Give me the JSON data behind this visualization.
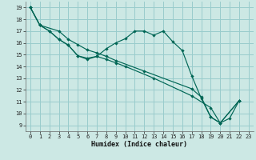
{
  "xlabel": "Humidex (Indice chaleur)",
  "bg_color": "#cce8e4",
  "grid_color": "#99cccc",
  "line_color": "#006655",
  "xlim": [
    -0.5,
    23.5
  ],
  "ylim": [
    8.5,
    19.5
  ],
  "xticks": [
    0,
    1,
    2,
    3,
    4,
    5,
    6,
    7,
    8,
    9,
    10,
    11,
    12,
    13,
    14,
    15,
    16,
    17,
    18,
    19,
    20,
    21,
    22,
    23
  ],
  "yticks": [
    9,
    10,
    11,
    12,
    13,
    14,
    15,
    16,
    17,
    18,
    19
  ],
  "series1": [
    [
      0,
      19.0
    ],
    [
      1,
      17.5
    ],
    [
      2,
      17.0
    ],
    [
      3,
      16.3
    ],
    [
      4,
      15.8
    ],
    [
      5,
      14.9
    ],
    [
      6,
      14.6
    ],
    [
      7,
      14.85
    ],
    [
      8,
      15.5
    ],
    [
      9,
      16.0
    ],
    [
      10,
      16.35
    ],
    [
      11,
      17.0
    ],
    [
      12,
      17.0
    ],
    [
      13,
      16.65
    ],
    [
      14,
      17.0
    ],
    [
      15,
      16.1
    ],
    [
      16,
      15.35
    ],
    [
      17,
      13.2
    ],
    [
      18,
      11.3
    ],
    [
      19,
      9.7
    ],
    [
      20,
      9.2
    ],
    [
      21,
      9.6
    ],
    [
      22,
      11.1
    ]
  ],
  "series2": [
    [
      0,
      19.0
    ],
    [
      1,
      17.5
    ],
    [
      2,
      17.0
    ],
    [
      3,
      16.3
    ],
    [
      4,
      15.8
    ],
    [
      5,
      14.9
    ],
    [
      6,
      14.7
    ],
    [
      7,
      14.85
    ],
    [
      8,
      14.6
    ],
    [
      9,
      14.3
    ],
    [
      10,
      14.0
    ],
    [
      13,
      13.0
    ],
    [
      17,
      11.5
    ],
    [
      19,
      10.5
    ],
    [
      20,
      9.2
    ],
    [
      22,
      11.1
    ]
  ],
  "series3": [
    [
      0,
      19.0
    ],
    [
      1,
      17.5
    ],
    [
      3,
      17.0
    ],
    [
      4,
      16.3
    ],
    [
      5,
      15.85
    ],
    [
      6,
      15.4
    ],
    [
      7,
      15.15
    ],
    [
      8,
      14.85
    ],
    [
      9,
      14.5
    ],
    [
      12,
      13.6
    ],
    [
      17,
      12.1
    ],
    [
      18,
      11.4
    ],
    [
      19,
      9.7
    ],
    [
      20,
      9.2
    ],
    [
      22,
      11.1
    ]
  ]
}
